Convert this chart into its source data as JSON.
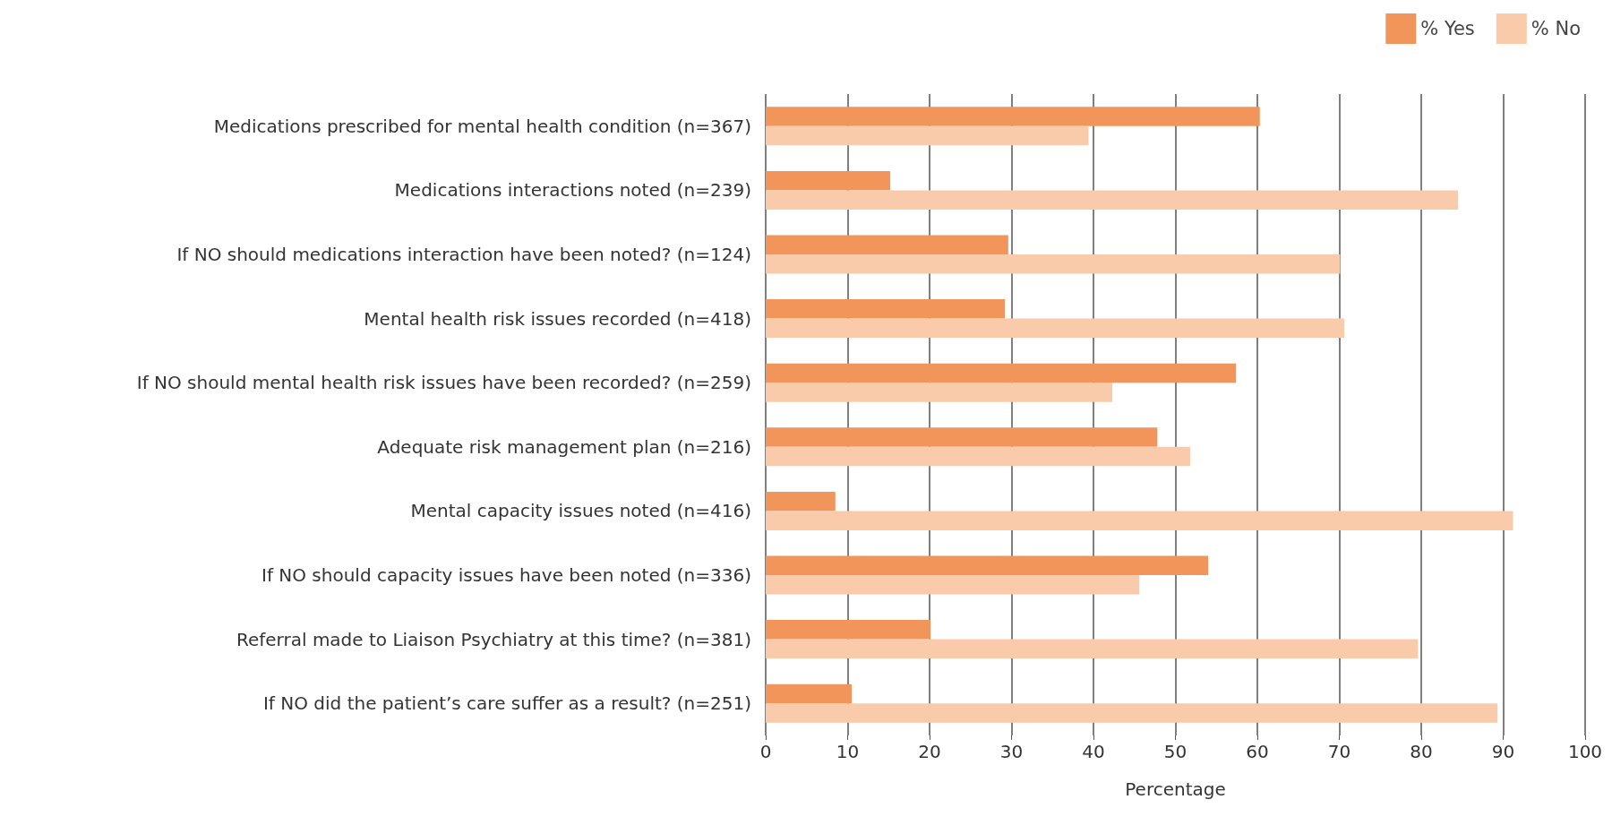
{
  "chart_data": {
    "type": "bar",
    "orientation": "horizontal",
    "xlabel": "Percentage",
    "categories": [
      "Medications prescribed for mental health condition (n=367)",
      "Medications interactions noted (n=239)",
      "If NO should medications interaction have been noted? (n=124)",
      "Mental health risk issues recorded (n=418)",
      "If NO should mental health risk issues have been recorded? (n=259)",
      "Adequate risk management plan (n=216)",
      "Mental capacity issues noted (n=416)",
      "If NO should capacity issues have been noted (n=336)",
      "Referral made to Liaison Psychiatry at this time? (n=381)",
      "If NO did the patient’s care suffer as a result? (n=251)"
    ],
    "series": [
      {
        "name": "% Yes",
        "color": "#f2955a",
        "values": [
          60.3,
          15.2,
          29.6,
          29.2,
          57.4,
          47.8,
          8.5,
          54.0,
          20.1,
          10.5
        ]
      },
      {
        "name": "% No",
        "color": "#f9cbab",
        "values": [
          39.4,
          84.5,
          70.1,
          70.6,
          42.3,
          51.8,
          91.2,
          45.6,
          79.6,
          89.3
        ]
      }
    ],
    "xlim": [
      0,
      100
    ],
    "xticks": [
      0,
      10,
      20,
      30,
      40,
      50,
      60,
      70,
      80,
      90,
      100
    ],
    "grid": "x",
    "legend": "top right"
  }
}
